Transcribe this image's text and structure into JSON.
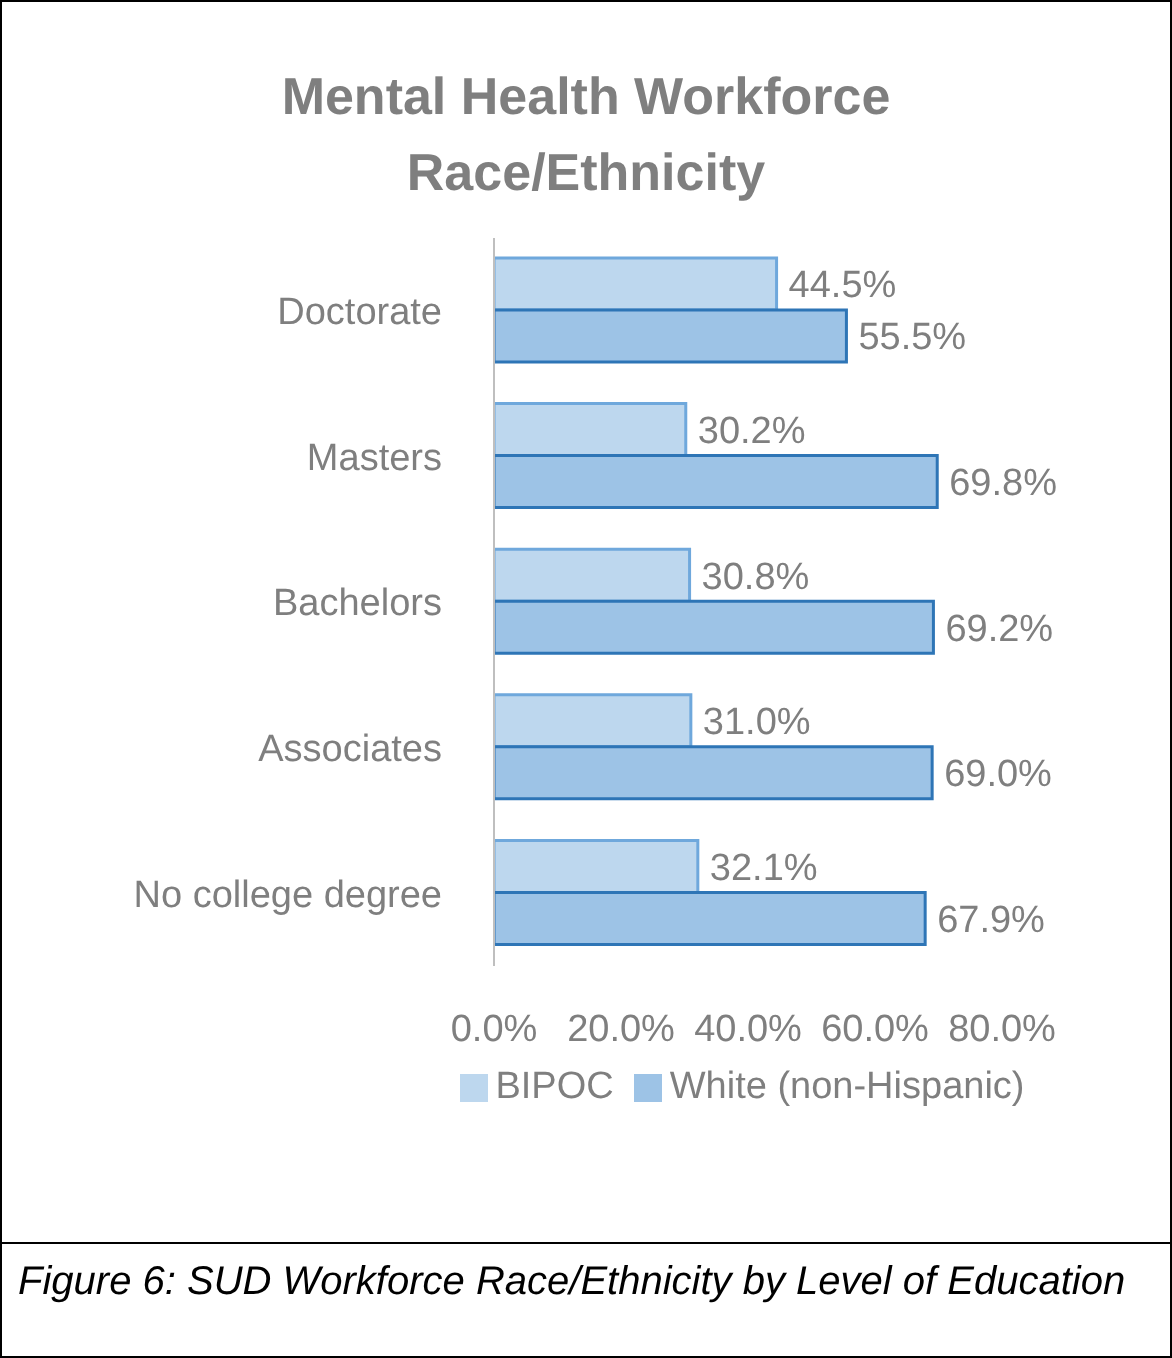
{
  "chart_data": {
    "type": "bar",
    "orientation": "horizontal",
    "title": "Mental Health Workforce Race/Ethnicity",
    "categories": [
      "Doctorate",
      "Masters",
      "Bachelors",
      "Associates",
      "No college degree"
    ],
    "series": [
      {
        "name": "BIPOC",
        "color": "#bdd7ee",
        "values": [
          44.5,
          30.2,
          30.8,
          31.0,
          32.1
        ],
        "value_labels": [
          "44.5%",
          "30.2%",
          "30.8%",
          "31.0%",
          "32.1%"
        ]
      },
      {
        "name": "White (non-Hispanic)",
        "color": "#9dc3e6",
        "values": [
          55.5,
          69.8,
          69.2,
          69.0,
          67.9
        ],
        "value_labels": [
          "55.5%",
          "69.8%",
          "69.2%",
          "69.0%",
          "67.9%"
        ]
      }
    ],
    "xlim": [
      0,
      80
    ],
    "xticks": [
      {
        "value": 0,
        "label": "0.0%"
      },
      {
        "value": 20,
        "label": "20.0%"
      },
      {
        "value": 40,
        "label": "40.0%"
      },
      {
        "value": 60,
        "label": "60.0%"
      },
      {
        "value": 80,
        "label": "80.0%"
      }
    ],
    "legend": "bottom",
    "annotations": [
      "Figure 6: SUD Workforce Race/Ethnicity by Level of Education"
    ]
  }
}
